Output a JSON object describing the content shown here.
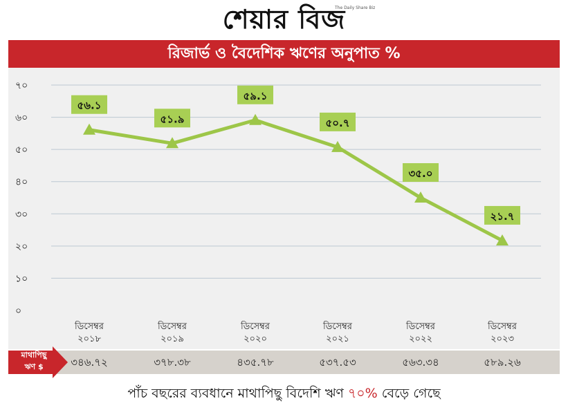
{
  "brand": {
    "name": "শেয়ার বিজ",
    "sub": "The Daily Share Biz"
  },
  "title": "রিজার্ভ ও বৈদেশিক ঋণের অনুপাত %",
  "colors": {
    "title_bg": "#c8262b",
    "line": "#9dc648",
    "label_bg": "#a8cf54",
    "panel_bg": "#f0f0f0",
    "percap_bg": "#d6d2cc"
  },
  "chart_data": {
    "type": "line",
    "categories": [
      [
        "ডিসেম্বর",
        "২০১৮"
      ],
      [
        "ডিসেম্বর",
        "২০১৯"
      ],
      [
        "ডিসেম্বর",
        "২০২০"
      ],
      [
        "ডিসেম্বর",
        "২০২১"
      ],
      [
        "ডিসেম্বর",
        "২০২২"
      ],
      [
        "ডিসেম্বর",
        "২০২৩"
      ]
    ],
    "values": [
      56.1,
      51.9,
      59.1,
      50.7,
      35.0,
      21.7
    ],
    "value_labels": [
      "৫৬.১",
      "৫১.৯",
      "৫৯.১",
      "৫০.৭",
      "৩৫.০",
      "২১.৭"
    ],
    "yticks": [
      0,
      10,
      20,
      30,
      40,
      50,
      60,
      70
    ],
    "ytick_labels": [
      "০",
      "১০",
      "২০",
      "৩০",
      "৪০",
      "৫০",
      "৬০",
      "৭০"
    ],
    "ylim": [
      0,
      70
    ],
    "grid": true,
    "marker": "triangle"
  },
  "per_capita": {
    "label_line1": "মাথাপিছু",
    "label_line2": "ঋণ $",
    "values": [
      "৩৪৬.৭২",
      "৩৭৮.৩৮",
      "৪৩৫.৭৮",
      "৫৩৭.৫৩",
      "৫৬৩.৩৪",
      "৫৮৯.২৬"
    ]
  },
  "footer": {
    "prefix": "পাঁচ বছরের ব্যবধানে মাথাপিছু বিদেশি ঋণ ",
    "highlight": "৭০%",
    "suffix": " বেড়ে গেছে"
  }
}
